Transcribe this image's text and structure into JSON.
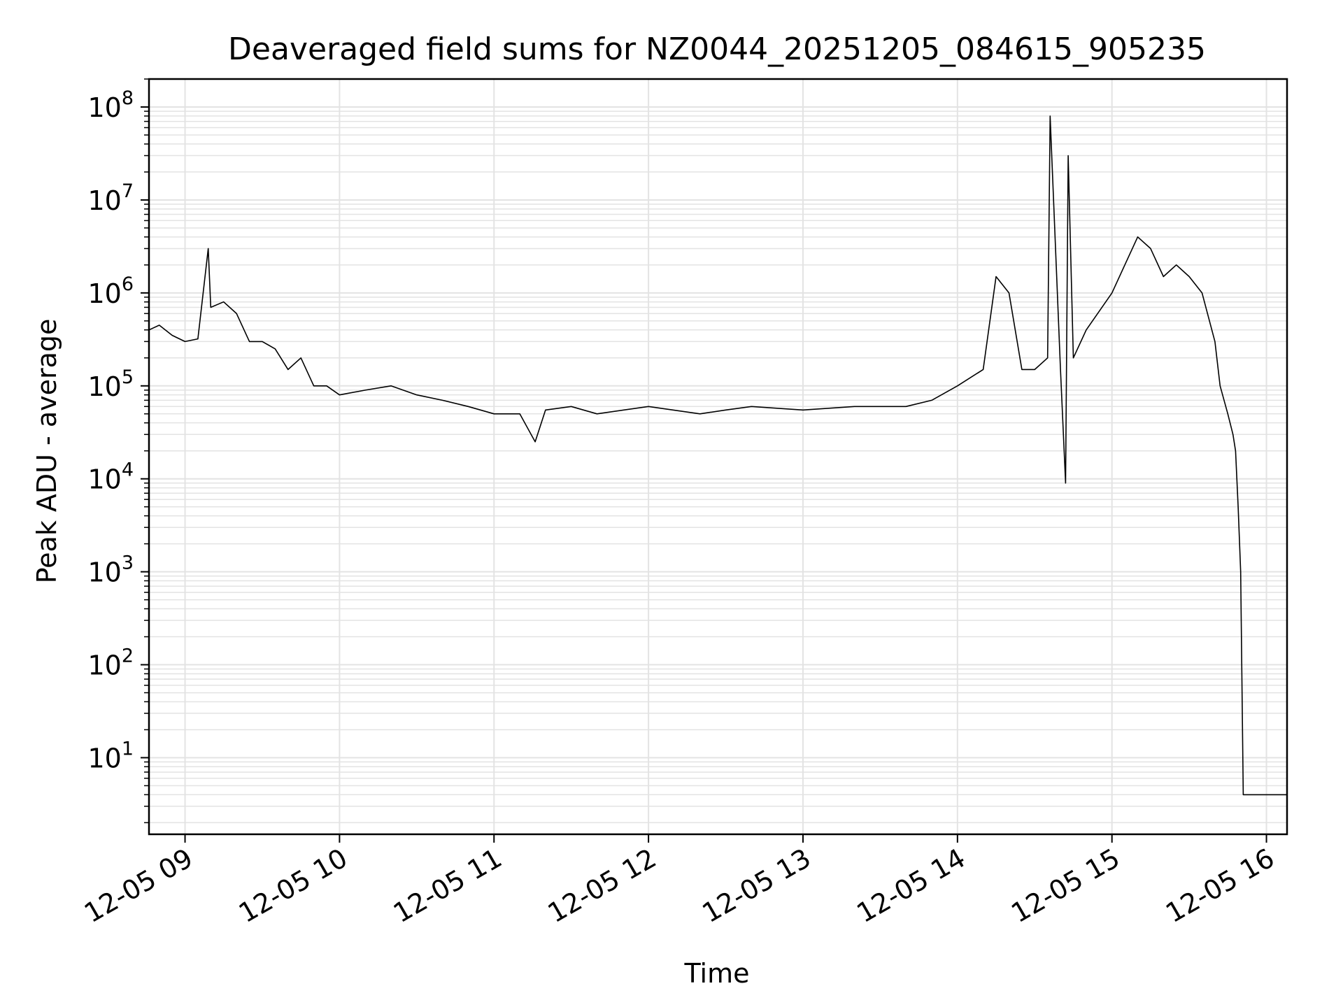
{
  "chart_data": {
    "type": "line",
    "title": "Deaveraged field sums for NZ0044_20251205_084615_905235",
    "xlabel": "Time",
    "ylabel": "Peak ADU - average",
    "x_axis": {
      "type": "time",
      "range": [
        "2025-12-05 08:46",
        "2025-12-05 16:08"
      ],
      "ticks": [
        "2025-12-05 09:00",
        "2025-12-05 10:00",
        "2025-12-05 11:00",
        "2025-12-05 12:00",
        "2025-12-05 13:00",
        "2025-12-05 14:00",
        "2025-12-05 15:00",
        "2025-12-05 16:00"
      ],
      "tick_labels": [
        "12-05 09",
        "12-05 10",
        "12-05 11",
        "12-05 12",
        "12-05 13",
        "12-05 14",
        "12-05 15",
        "12-05 16"
      ]
    },
    "y_axis": {
      "scale": "log",
      "range": [
        1.5,
        200000000
      ],
      "ticks": [
        10,
        100,
        1000,
        10000,
        100000,
        1000000,
        10000000,
        100000000
      ],
      "tick_labels": [
        {
          "base": "10",
          "exp": "1"
        },
        {
          "base": "10",
          "exp": "2"
        },
        {
          "base": "10",
          "exp": "3"
        },
        {
          "base": "10",
          "exp": "4"
        },
        {
          "base": "10",
          "exp": "5"
        },
        {
          "base": "10",
          "exp": "6"
        },
        {
          "base": "10",
          "exp": "7"
        },
        {
          "base": "10",
          "exp": "8"
        }
      ]
    },
    "grid": true,
    "line_color": "#000000",
    "grid_color": "#e3e3e3",
    "series": [
      {
        "x": [
          "08:46",
          "08:50",
          "08:55",
          "09:00",
          "09:05",
          "09:09",
          "09:10",
          "09:15",
          "09:20",
          "09:25",
          "09:30",
          "09:35",
          "09:40",
          "09:45",
          "09:50",
          "09:55",
          "10:00",
          "10:10",
          "10:20",
          "10:30",
          "10:40",
          "10:50",
          "11:00",
          "11:10",
          "11:16",
          "11:20",
          "11:30",
          "11:40",
          "12:00",
          "12:20",
          "12:30",
          "12:40",
          "13:00",
          "13:20",
          "13:40",
          "13:50",
          "14:00",
          "14:10",
          "14:15",
          "14:20",
          "14:25",
          "14:30",
          "14:35",
          "14:36",
          "14:40",
          "14:42",
          "14:43",
          "14:45",
          "14:50",
          "15:00",
          "15:05",
          "15:10",
          "15:15",
          "15:20",
          "15:25",
          "15:30",
          "15:35",
          "15:40",
          "15:42",
          "15:45",
          "15:47",
          "15:48",
          "15:49",
          "15:50",
          "15:51",
          "16:08"
        ],
        "y": [
          400000,
          450000,
          350000,
          300000,
          320000,
          3000000,
          700000,
          800000,
          600000,
          300000,
          300000,
          250000,
          150000,
          200000,
          100000,
          100000,
          80000,
          90000,
          100000,
          80000,
          70000,
          60000,
          50000,
          50000,
          25000,
          55000,
          60000,
          50000,
          60000,
          50000,
          55000,
          60000,
          55000,
          60000,
          60000,
          70000,
          100000,
          150000,
          1500000,
          1000000,
          150000,
          150000,
          200000,
          80000000,
          150000,
          9000,
          30000000,
          200000,
          400000,
          1000000,
          2000000,
          4000000,
          3000000,
          1500000,
          2000000,
          1500000,
          1000000,
          300000,
          100000,
          50000,
          30000,
          20000,
          5000,
          1000,
          4,
          4
        ]
      }
    ]
  }
}
